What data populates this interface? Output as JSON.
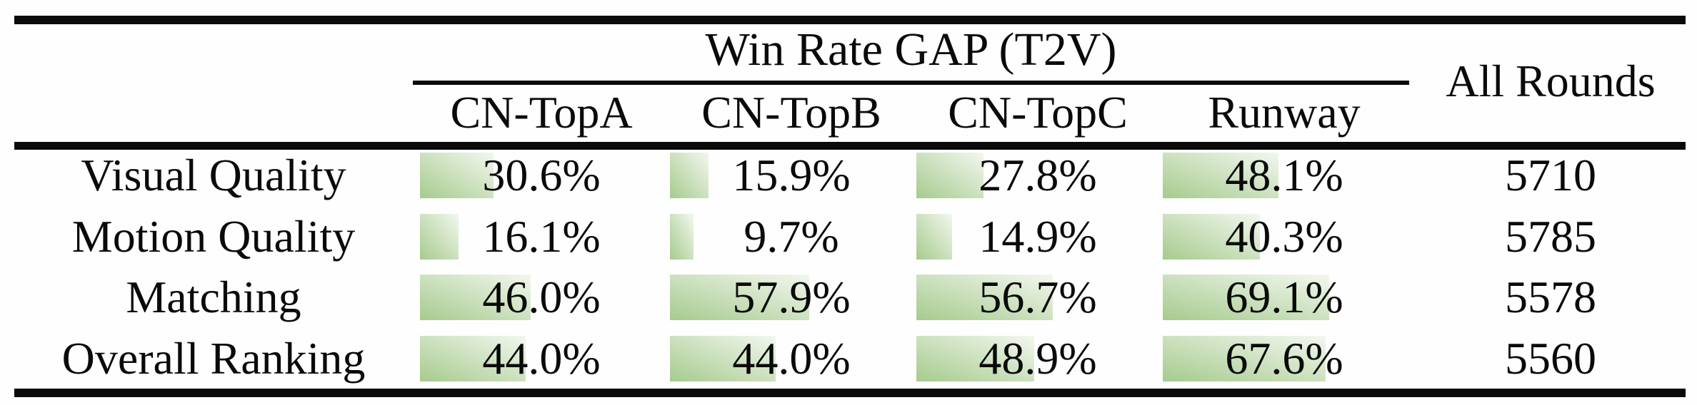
{
  "colors": {
    "bar_gradient_start": "#a6cb8e",
    "bar_gradient_end": "#f3f7ef",
    "rule_color": "#0a0a0a",
    "text_color": "#0a0a0a",
    "background": "#fefefe"
  },
  "table": {
    "title": "Win Rate GAP (T2V)",
    "all_rounds_header": "All Rounds",
    "col_headers": [
      "CN-TopA",
      "CN-TopB",
      "CN-TopC",
      "Runway"
    ],
    "rows": [
      {
        "label": "Visual Quality",
        "cells": [
          {
            "pct": 30.6,
            "text": "30.6%"
          },
          {
            "pct": 15.9,
            "text": "15.9%"
          },
          {
            "pct": 27.8,
            "text": "27.8%"
          },
          {
            "pct": 48.1,
            "text": "48.1%"
          }
        ],
        "rounds": "5710"
      },
      {
        "label": "Motion Quality",
        "cells": [
          {
            "pct": 16.1,
            "text": "16.1%"
          },
          {
            "pct": 9.7,
            "text": "9.7%"
          },
          {
            "pct": 14.9,
            "text": "14.9%"
          },
          {
            "pct": 40.3,
            "text": "40.3%"
          }
        ],
        "rounds": "5785"
      },
      {
        "label": "Matching",
        "cells": [
          {
            "pct": 46.0,
            "text": "46.0%"
          },
          {
            "pct": 57.9,
            "text": "57.9%"
          },
          {
            "pct": 56.7,
            "text": "56.7%"
          },
          {
            "pct": 69.1,
            "text": "69.1%"
          }
        ],
        "rounds": "5578"
      },
      {
        "label": "Overall Ranking",
        "cells": [
          {
            "pct": 44.0,
            "text": "44.0%"
          },
          {
            "pct": 44.0,
            "text": "44.0%"
          },
          {
            "pct": 48.9,
            "text": "48.9%"
          },
          {
            "pct": 67.6,
            "text": "67.6%"
          }
        ],
        "rounds": "5560"
      }
    ]
  },
  "chart_data": {
    "type": "table",
    "title": "Win Rate GAP (T2V)",
    "columns": [
      "CN-TopA",
      "CN-TopB",
      "CN-TopC",
      "Runway",
      "All Rounds"
    ],
    "row_labels": [
      "Visual Quality",
      "Motion Quality",
      "Matching",
      "Overall Ranking"
    ],
    "series": [
      {
        "name": "CN-TopA",
        "values": [
          30.6,
          16.1,
          46.0,
          44.0
        ]
      },
      {
        "name": "CN-TopB",
        "values": [
          15.9,
          9.7,
          57.9,
          44.0
        ]
      },
      {
        "name": "CN-TopC",
        "values": [
          27.8,
          14.9,
          56.7,
          48.9
        ]
      },
      {
        "name": "Runway",
        "values": [
          48.1,
          40.3,
          69.1,
          67.6
        ]
      }
    ],
    "all_rounds": [
      5710,
      5785,
      5578,
      5560
    ],
    "unit": "%",
    "layout_hints": "in-cell green gradient data bars, width proportional to percentage; booktabs-style horizontal rules"
  }
}
